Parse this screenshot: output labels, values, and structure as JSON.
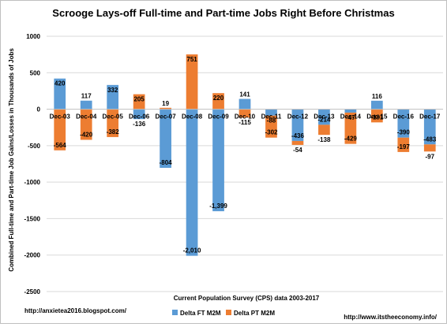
{
  "chart_data": {
    "type": "bar",
    "title": "Scrooge  Lays-off  Full-time and Part-time Jobs Right Before Christmas",
    "xlabel": "Current Population Survey (CPS) data 2003-2017",
    "ylabel": "Combined Full-time and Part-time Job Gains/Losses in Thousands of Jobs",
    "ylim": [
      -2500,
      1000
    ],
    "yticks": [
      1000,
      500,
      0,
      -500,
      -1000,
      -1500,
      -2000,
      -2500
    ],
    "categories": [
      "Dec-03",
      "Dec-04",
      "Dec-05",
      "Dec-06",
      "Dec-07",
      "Dec-08",
      "Dec-09",
      "Dec-10",
      "Dec-11",
      "Dec-12",
      "Dec-13",
      "Dec-14",
      "Dec-15",
      "Dec-16",
      "Dec-17"
    ],
    "series": [
      {
        "name": "Delta FT M2M",
        "color": "#5b9bd5",
        "values": [
          420,
          117,
          332,
          -136,
          -804,
          -2010,
          -1399,
          141,
          -88,
          -436,
          -214,
          -47,
          116,
          -390,
          -483
        ],
        "labels": [
          "420",
          "117",
          "332",
          "-136",
          "-804",
          "-2,010",
          "-1,399",
          "141",
          "-88",
          "-436",
          "-214",
          "-47",
          "116",
          "-390",
          "-483"
        ]
      },
      {
        "name": "Delta PT M2M",
        "color": "#ed7d31",
        "values": [
          -564,
          -420,
          -382,
          205,
          19,
          751,
          220,
          -115,
          -302,
          -54,
          -138,
          -429,
          -181,
          -197,
          -97
        ],
        "labels": [
          "-564",
          "-420",
          "-382",
          "205",
          "19",
          "751",
          "220",
          "-115",
          "-302",
          "-54",
          "-138",
          "-429",
          "-181",
          "-197",
          "-97"
        ]
      }
    ],
    "legend_position": "bottom",
    "grid": true
  },
  "footer": {
    "left_url": "http://anxietea2016.blogspot.com/",
    "right_url": "http://www.itstheeconomy.info/"
  }
}
